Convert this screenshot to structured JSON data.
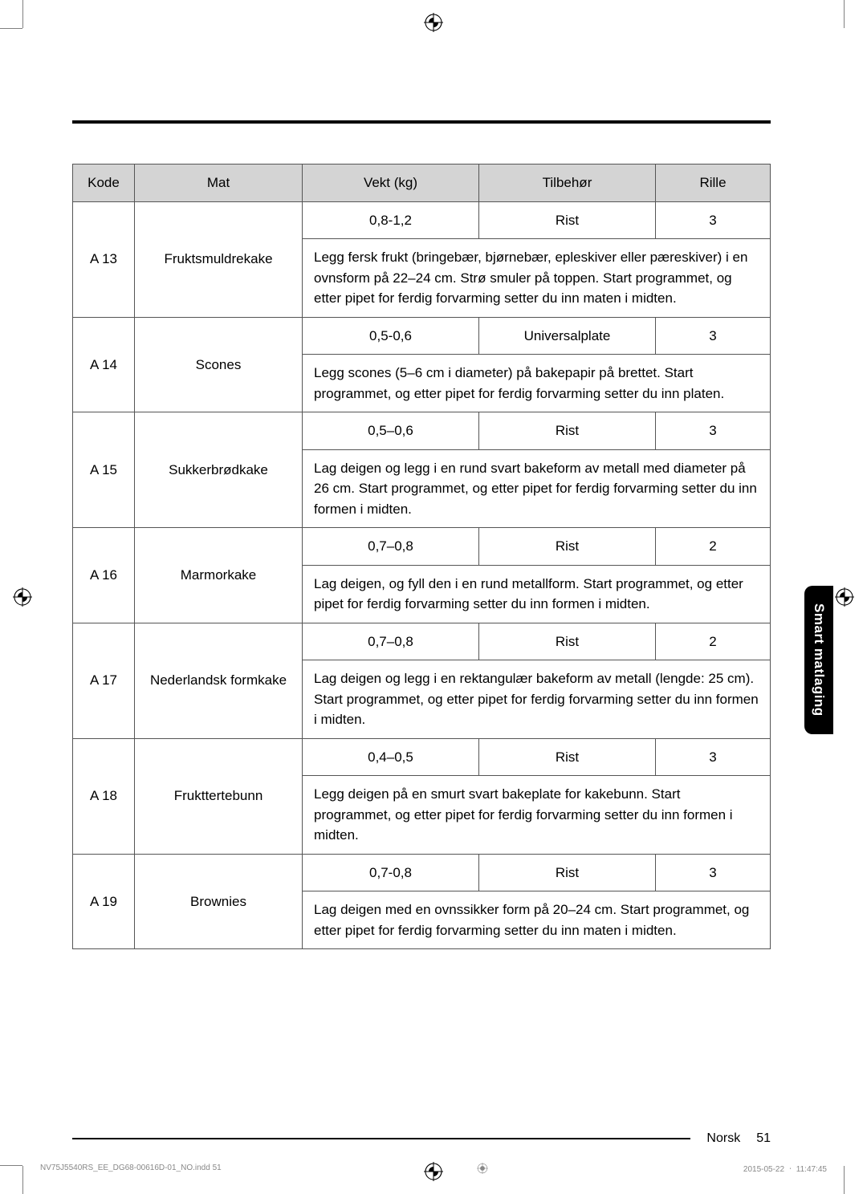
{
  "columns": {
    "kode": "Kode",
    "mat": "Mat",
    "vekt": "Vekt (kg)",
    "tilbehor": "Tilbehør",
    "rille": "Rille"
  },
  "rows": [
    {
      "kode": "A 13",
      "mat": "Fruktsmuldrekake",
      "vekt": "0,8-1,2",
      "tilbehor": "Rist",
      "rille": "3",
      "desc": "Legg fersk frukt (bringebær, bjørnebær, epleskiver eller pæreskiver) i en ovnsform på 22–24 cm. Strø smuler på toppen. Start programmet, og etter pipet for ferdig forvarming setter du inn maten i midten."
    },
    {
      "kode": "A 14",
      "mat": "Scones",
      "vekt": "0,5-0,6",
      "tilbehor": "Universalplate",
      "rille": "3",
      "desc": "Legg scones (5–6 cm i diameter) på bakepapir på brettet. Start programmet, og etter pipet for ferdig forvarming setter du inn platen."
    },
    {
      "kode": "A 15",
      "mat": "Sukkerbrødkake",
      "vekt": "0,5–0,6",
      "tilbehor": "Rist",
      "rille": "3",
      "desc": "Lag deigen og legg i en rund svart bakeform av metall med diameter på 26 cm. Start programmet, og etter pipet for ferdig forvarming setter du inn formen i midten."
    },
    {
      "kode": "A 16",
      "mat": "Marmorkake",
      "vekt": "0,7–0,8",
      "tilbehor": "Rist",
      "rille": "2",
      "desc": "Lag deigen, og fyll den i en rund metallform. Start programmet, og etter pipet for ferdig forvarming setter du inn formen i midten."
    },
    {
      "kode": "A 17",
      "mat": "Nederlandsk formkake",
      "vekt": "0,7–0,8",
      "tilbehor": "Rist",
      "rille": "2",
      "desc": "Lag deigen og legg i en rektangulær bakeform av metall (lengde: 25 cm). Start programmet, og etter pipet for ferdig forvarming setter du inn formen i midten."
    },
    {
      "kode": "A 18",
      "mat": "Frukttertebunn",
      "vekt": "0,4–0,5",
      "tilbehor": "Rist",
      "rille": "3",
      "desc": "Legg deigen på en smurt svart bakeplate for kakebunn. Start programmet, og etter pipet for ferdig forvarming setter du inn formen i midten."
    },
    {
      "kode": "A 19",
      "mat": "Brownies",
      "vekt": "0,7-0,8",
      "tilbehor": "Rist",
      "rille": "3",
      "desc": "Lag deigen med en ovnssikker form på 20–24 cm. Start programmet, og etter pipet for ferdig forvarming setter du inn maten i midten."
    }
  ],
  "sideTab": "Smart matlaging",
  "footer": {
    "lang": "Norsk",
    "page": "51"
  },
  "imprint": {
    "left": "NV75J5540RS_EE_DG68-00616D-01_NO.indd   51",
    "right": "2015-05-22   ㆍ 11:47:45"
  },
  "colWidths": [
    "70px",
    "190px",
    "200px",
    "200px",
    "130px"
  ]
}
